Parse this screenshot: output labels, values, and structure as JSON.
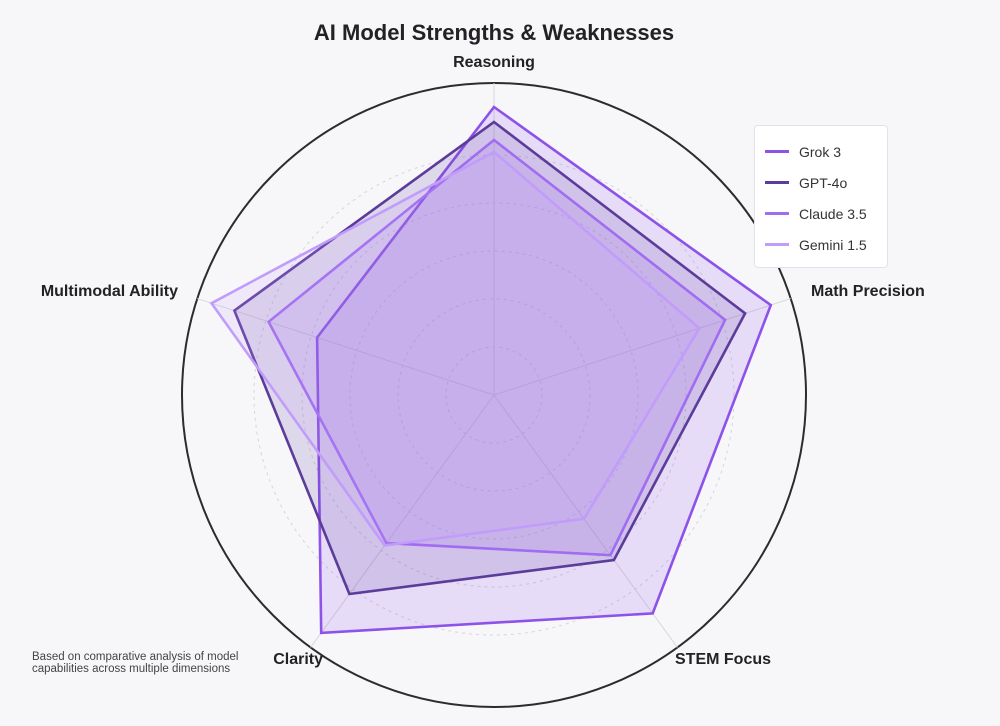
{
  "chart_data": {
    "type": "radar",
    "title": "AI Model Strengths & Weaknesses",
    "axes": [
      "Reasoning",
      "Math Precision",
      "STEM Focus",
      "Clarity",
      "Multimodal Ability"
    ],
    "range": [
      0,
      100
    ],
    "grid": true,
    "grid_levels": [
      20,
      40,
      60,
      80,
      100
    ],
    "legend_position": "top-right",
    "series": [
      {
        "name": "Grok 3",
        "values": [
          96,
          97,
          90,
          98,
          62
        ],
        "color": "#8c52ea"
      },
      {
        "name": "GPT-4o",
        "values": [
          91,
          88,
          68,
          82,
          91
        ],
        "color": "#5c3c9b"
      },
      {
        "name": "Claude 3.5",
        "values": [
          85,
          81,
          66,
          61,
          79
        ],
        "color": "#a06cf2"
      },
      {
        "name": "Gemini 1.5",
        "values": [
          81,
          72,
          51,
          62,
          99
        ],
        "color": "#c19cfa"
      }
    ]
  },
  "note": "Based on comparative analysis of model capabilities across multiple dimensions"
}
